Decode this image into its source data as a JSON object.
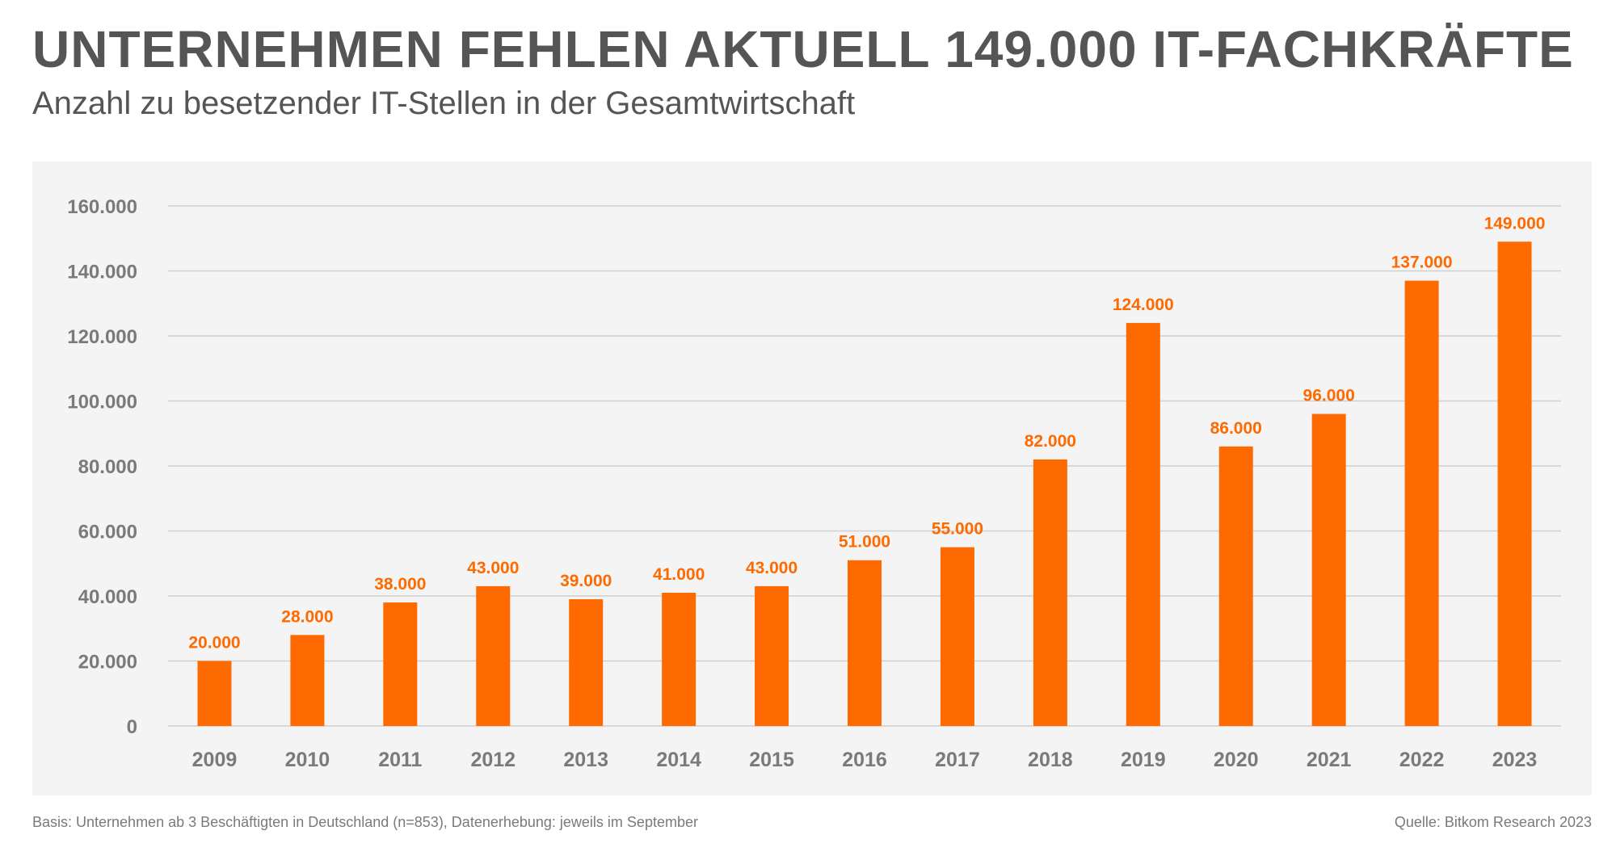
{
  "header": {
    "title": "UNTERNEHMEN FEHLEN AKTUELL 149.000 IT-FACHKRÄFTE",
    "subtitle": "Anzahl zu besetzender IT-Stellen in der Gesamtwirtschaft"
  },
  "footer": {
    "basis": "Basis: Unternehmen ab 3 Beschäftigten in Deutschland (n=853), Datenerhebung: jeweils im September",
    "source": "Quelle: Bitkom Research 2023"
  },
  "colors": {
    "bar": "#ff6a00",
    "axis_text": "#7a7a7a",
    "grid": "#cfcfcf",
    "panel": "#f4f4f4"
  },
  "chart_data": {
    "type": "bar",
    "categories": [
      "2009",
      "2010",
      "2011",
      "2012",
      "2013",
      "2014",
      "2015",
      "2016",
      "2017",
      "2018",
      "2019",
      "2020",
      "2021",
      "2022",
      "2023"
    ],
    "values": [
      20000,
      28000,
      38000,
      43000,
      39000,
      41000,
      43000,
      51000,
      55000,
      82000,
      124000,
      86000,
      96000,
      137000,
      149000
    ],
    "value_labels": [
      "20.000",
      "28.000",
      "38.000",
      "43.000",
      "39.000",
      "41.000",
      "43.000",
      "51.000",
      "55.000",
      "82.000",
      "124.000",
      "86.000",
      "96.000",
      "137.000",
      "149.000"
    ],
    "ylim": [
      0,
      160000
    ],
    "yticks": [
      0,
      20000,
      40000,
      60000,
      80000,
      100000,
      120000,
      140000,
      160000
    ],
    "ytick_labels": [
      "0",
      "20.000",
      "40.000",
      "60.000",
      "80.000",
      "100.000",
      "120.000",
      "140.000",
      "160.000"
    ],
    "grid": true,
    "legend": false
  }
}
